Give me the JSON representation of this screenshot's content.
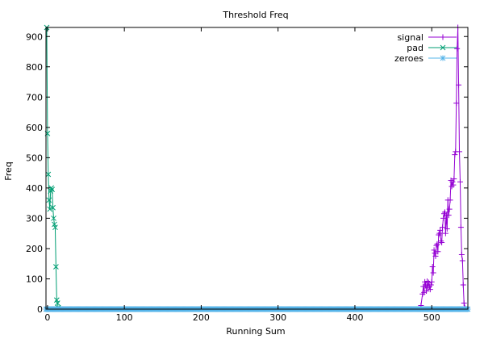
{
  "chart_data": {
    "type": "line",
    "title": "Threshold Freq",
    "xlabel": "Running Sum",
    "ylabel": "Freq",
    "xlim": [
      -2,
      547
    ],
    "ylim": [
      0,
      930
    ],
    "x_ticks": [
      0,
      100,
      200,
      300,
      400,
      500
    ],
    "y_ticks": [
      0,
      100,
      200,
      300,
      400,
      500,
      600,
      700,
      800,
      900
    ],
    "grid": false,
    "legend_position": "top-right",
    "series": [
      {
        "name": "signal",
        "color": "#9400d3",
        "marker": "plus",
        "points": [
          [
            486,
            12
          ],
          [
            488,
            50
          ],
          [
            489,
            75
          ],
          [
            490,
            55
          ],
          [
            491,
            90
          ],
          [
            492,
            80
          ],
          [
            493,
            60
          ],
          [
            494,
            92
          ],
          [
            495,
            70
          ],
          [
            496,
            88
          ],
          [
            497,
            75
          ],
          [
            498,
            65
          ],
          [
            499,
            80
          ],
          [
            500,
            90
          ],
          [
            501,
            140
          ],
          [
            502,
            120
          ],
          [
            503,
            195
          ],
          [
            504,
            185
          ],
          [
            505,
            175
          ],
          [
            506,
            210
          ],
          [
            507,
            215
          ],
          [
            508,
            190
          ],
          [
            509,
            245
          ],
          [
            510,
            250
          ],
          [
            511,
            260
          ],
          [
            512,
            225
          ],
          [
            513,
            220
          ],
          [
            514,
            270
          ],
          [
            515,
            300
          ],
          [
            516,
            315
          ],
          [
            517,
            320
          ],
          [
            518,
            250
          ],
          [
            519,
            310
          ],
          [
            520,
            265
          ],
          [
            521,
            360
          ],
          [
            522,
            310
          ],
          [
            523,
            330
          ],
          [
            524,
            360
          ],
          [
            525,
            425
          ],
          [
            526,
            405
          ],
          [
            527,
            420
          ],
          [
            528,
            410
          ],
          [
            529,
            430
          ],
          [
            530,
            510
          ],
          [
            531,
            520
          ],
          [
            532,
            680
          ],
          [
            533,
            860
          ],
          [
            534,
            930
          ],
          [
            535,
            740
          ],
          [
            536,
            520
          ],
          [
            537,
            420
          ],
          [
            538,
            270
          ],
          [
            539,
            180
          ],
          [
            540,
            160
          ],
          [
            541,
            80
          ],
          [
            542,
            20
          ],
          [
            543,
            5
          ]
        ]
      },
      {
        "name": "pad",
        "color": "#009e73",
        "marker": "cross",
        "points": [
          [
            -1,
            930
          ],
          [
            0,
            580
          ],
          [
            1,
            445
          ],
          [
            2,
            360
          ],
          [
            3,
            330
          ],
          [
            4,
            390
          ],
          [
            5,
            400
          ],
          [
            6,
            395
          ],
          [
            7,
            335
          ],
          [
            8,
            300
          ],
          [
            9,
            280
          ],
          [
            10,
            270
          ],
          [
            11,
            140
          ],
          [
            12,
            30
          ],
          [
            13,
            20
          ],
          [
            14,
            5
          ]
        ]
      },
      {
        "name": "zeroes",
        "color": "#56b4e9",
        "marker": "star",
        "constant": 0
      }
    ]
  }
}
